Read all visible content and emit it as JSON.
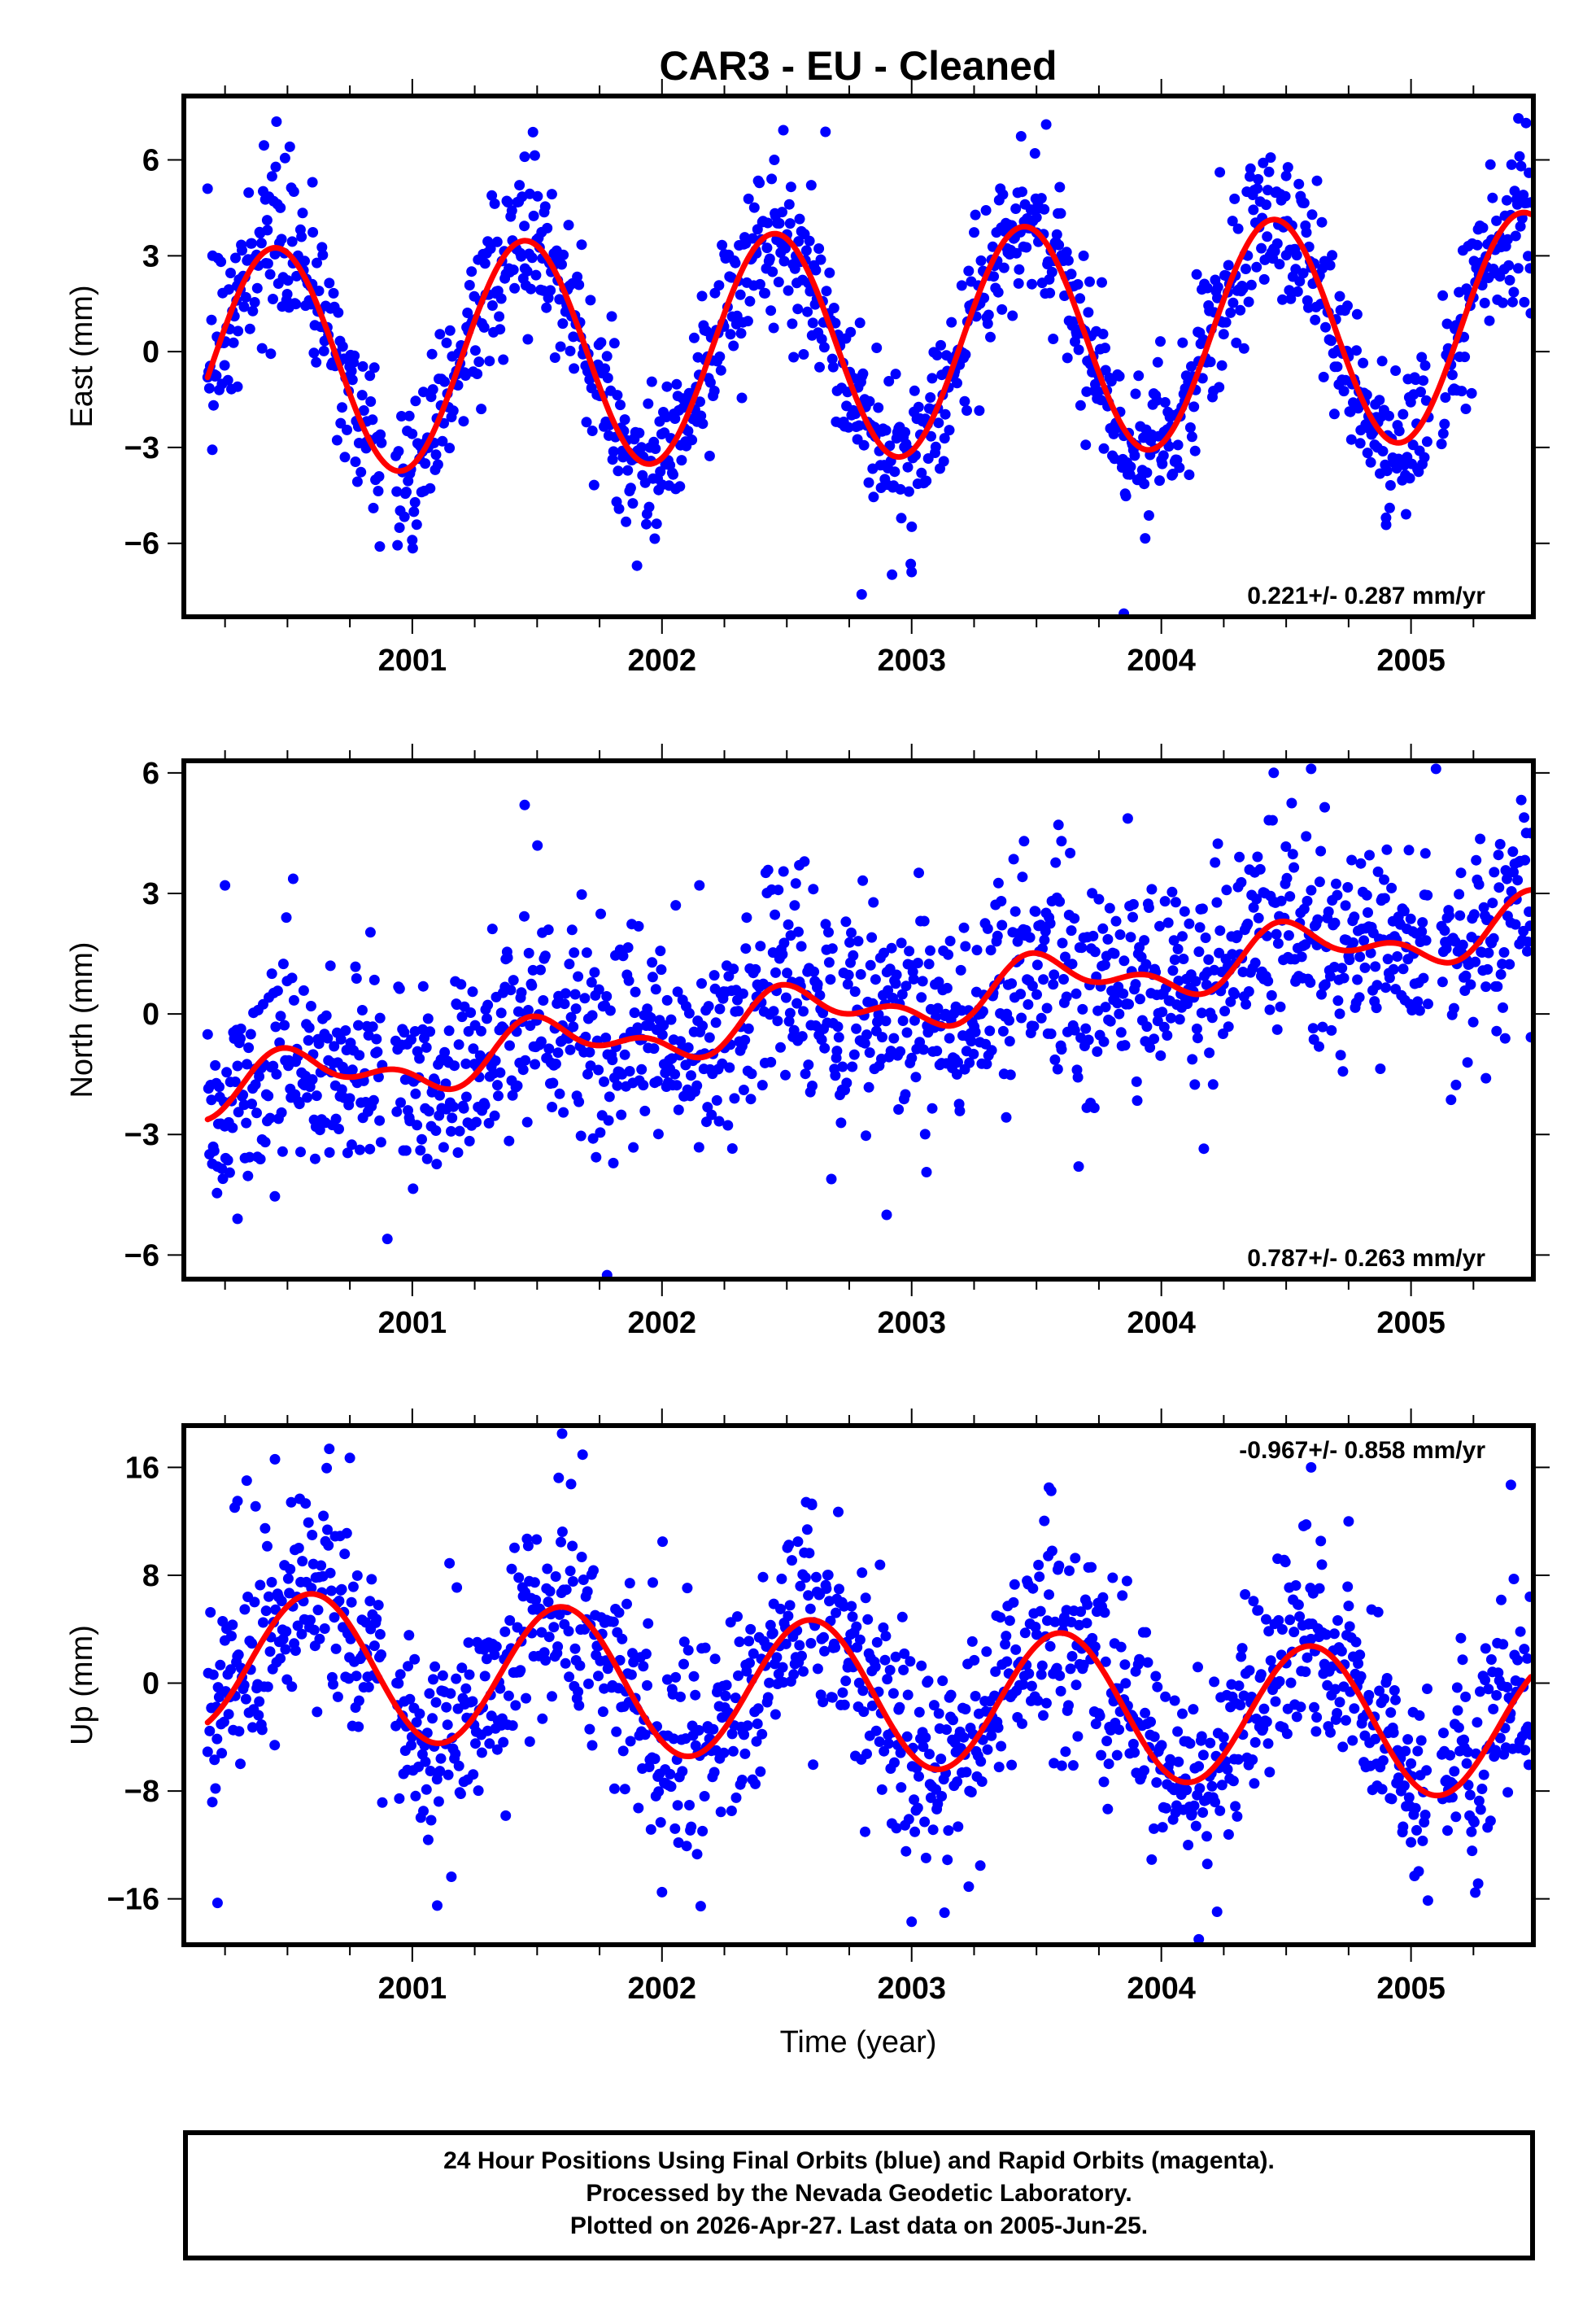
{
  "title": "CAR3  - EU - Cleaned",
  "x_axis_label": "Time (year)",
  "footer": {
    "lines": [
      "24 Hour Positions Using Final Orbits (blue) and Rapid Orbits (magenta).",
      "Processed by the Nevada Geodetic Laboratory.",
      "Plotted on 2026-Apr-27. Last data on 2005-Jun-25."
    ]
  },
  "colors": {
    "points_final": "#0000ff",
    "model_curve": "#ff0000",
    "frame": "#000000"
  },
  "chart_data": [
    {
      "type": "scatter",
      "name": "east",
      "title": "CAR3  - EU - Cleaned",
      "xlabel": "",
      "ylabel": "East (mm)",
      "xlim": [
        2000.085,
        2005.49
      ],
      "ylim": [
        -8.3,
        8.0
      ],
      "x_ticks": [
        2001,
        2002,
        2003,
        2004,
        2005
      ],
      "x_tick_labels": [
        "2001",
        "2002",
        "2003",
        "2004",
        "2005"
      ],
      "x_minor_step": 0.25,
      "y_ticks": [
        -6,
        -3,
        0,
        3,
        6
      ],
      "y_tick_labels": [
        "−6",
        "−3",
        "0",
        "3",
        "6"
      ],
      "rate_label": "0.221+/- 0.287 mm/yr",
      "rate_label_position": "bottom-right",
      "data_range": [
        2000.18,
        2005.48
      ],
      "model": {
        "offset": -0.4,
        "trend": 0.221,
        "t0": 2000.0,
        "annual_amp": 3.55,
        "annual_peak": 2000.45,
        "semi_amp": 0.0,
        "semi_peak": 2000.0
      },
      "scatter_sd": 1.2,
      "n_points": 1380,
      "gaps": [
        [
          2000.88,
          2000.93
        ],
        [
          2005.07,
          2005.12
        ]
      ],
      "sample_points": [
        [
          2000.18,
          5.1
        ],
        [
          2000.2,
          3.0
        ],
        [
          2000.3,
          -1.1
        ],
        [
          2000.42,
          3.8
        ],
        [
          2000.6,
          5.3
        ],
        [
          2000.87,
          -6.1
        ],
        [
          2001.0,
          -5.9
        ],
        [
          2001.45,
          6.1
        ],
        [
          2001.9,
          -6.7
        ],
        [
          2002.45,
          6.0
        ],
        [
          2002.8,
          -7.6
        ],
        [
          2003.0,
          -6.9
        ],
        [
          2003.5,
          4.2
        ],
        [
          2003.85,
          -8.2
        ],
        [
          2004.5,
          5.5
        ],
        [
          2004.9,
          -5.2
        ],
        [
          2005.43,
          7.3
        ],
        [
          2005.48,
          1.2
        ]
      ]
    },
    {
      "type": "scatter",
      "name": "north",
      "xlabel": "",
      "ylabel": "North (mm)",
      "xlim": [
        2000.085,
        2005.49
      ],
      "ylim": [
        -6.6,
        6.3
      ],
      "x_ticks": [
        2001,
        2002,
        2003,
        2004,
        2005
      ],
      "x_tick_labels": [
        "2001",
        "2002",
        "2003",
        "2004",
        "2005"
      ],
      "x_minor_step": 0.25,
      "y_ticks": [
        -6,
        -3,
        0,
        3,
        6
      ],
      "y_tick_labels": [
        "−6",
        "−3",
        "0",
        "3",
        "6"
      ],
      "rate_label": "0.787+/- 0.263 mm/yr",
      "rate_label_position": "bottom-right",
      "data_range": [
        2000.18,
        2005.48
      ],
      "model": {
        "offset": -2.05,
        "trend": 0.787,
        "t0": 2000.0,
        "annual_amp": 0.55,
        "annual_peak": 2000.55,
        "semi_amp": 0.35,
        "semi_peak": 2000.45
      },
      "scatter_sd": 1.3,
      "n_points": 1380,
      "gaps": [
        [
          2000.88,
          2000.93
        ],
        [
          2005.07,
          2005.12
        ]
      ],
      "sample_points": [
        [
          2000.25,
          3.2
        ],
        [
          2000.22,
          -3.8
        ],
        [
          2000.3,
          -5.1
        ],
        [
          2000.9,
          -5.6
        ],
        [
          2001.45,
          5.2
        ],
        [
          2001.78,
          -6.5
        ],
        [
          2002.15,
          3.2
        ],
        [
          2002.55,
          3.7
        ],
        [
          2002.9,
          -5.0
        ],
        [
          2003.6,
          4.3
        ],
        [
          2004.45,
          6.0
        ],
        [
          2004.6,
          6.1
        ],
        [
          2005.1,
          6.1
        ],
        [
          2005.3,
          -1.6
        ],
        [
          2005.48,
          4.5
        ]
      ]
    },
    {
      "type": "scatter",
      "name": "up",
      "xlabel": "Time (year)",
      "ylabel": "Up (mm)",
      "xlim": [
        2000.085,
        2005.49
      ],
      "ylim": [
        -19.4,
        19.1
      ],
      "x_ticks": [
        2001,
        2002,
        2003,
        2004,
        2005
      ],
      "x_tick_labels": [
        "2001",
        "2002",
        "2003",
        "2004",
        "2005"
      ],
      "x_minor_step": 0.25,
      "y_ticks": [
        -16,
        -8,
        0,
        8,
        16
      ],
      "y_tick_labels": [
        "−16",
        "−8",
        "0",
        "8",
        "16"
      ],
      "rate_label": "-0.967+/- 0.858 mm/yr",
      "rate_label_position": "top-right",
      "data_range": [
        2000.18,
        2005.48
      ],
      "model": {
        "offset": 1.9,
        "trend": -0.967,
        "t0": 2000.0,
        "annual_amp": 5.3,
        "annual_peak": 2000.6,
        "semi_amp": 0.0,
        "semi_peak": 2000.0
      },
      "scatter_sd": 3.8,
      "n_points": 1380,
      "gaps": [
        [
          2000.88,
          2000.93
        ],
        [
          2005.07,
          2005.12
        ]
      ],
      "sample_points": [
        [
          2000.22,
          -16.3
        ],
        [
          2000.3,
          13.5
        ],
        [
          2000.45,
          16.6
        ],
        [
          2000.75,
          16.7
        ],
        [
          2001.1,
          -16.5
        ],
        [
          2001.6,
          18.5
        ],
        [
          2002.0,
          -15.5
        ],
        [
          2002.6,
          13.3
        ],
        [
          2003.0,
          -17.7
        ],
        [
          2003.55,
          14.5
        ],
        [
          2004.15,
          -19.0
        ],
        [
          2004.6,
          16.0
        ],
        [
          2004.75,
          12.0
        ],
        [
          2005.0,
          -11.8
        ],
        [
          2005.4,
          14.7
        ]
      ]
    }
  ]
}
